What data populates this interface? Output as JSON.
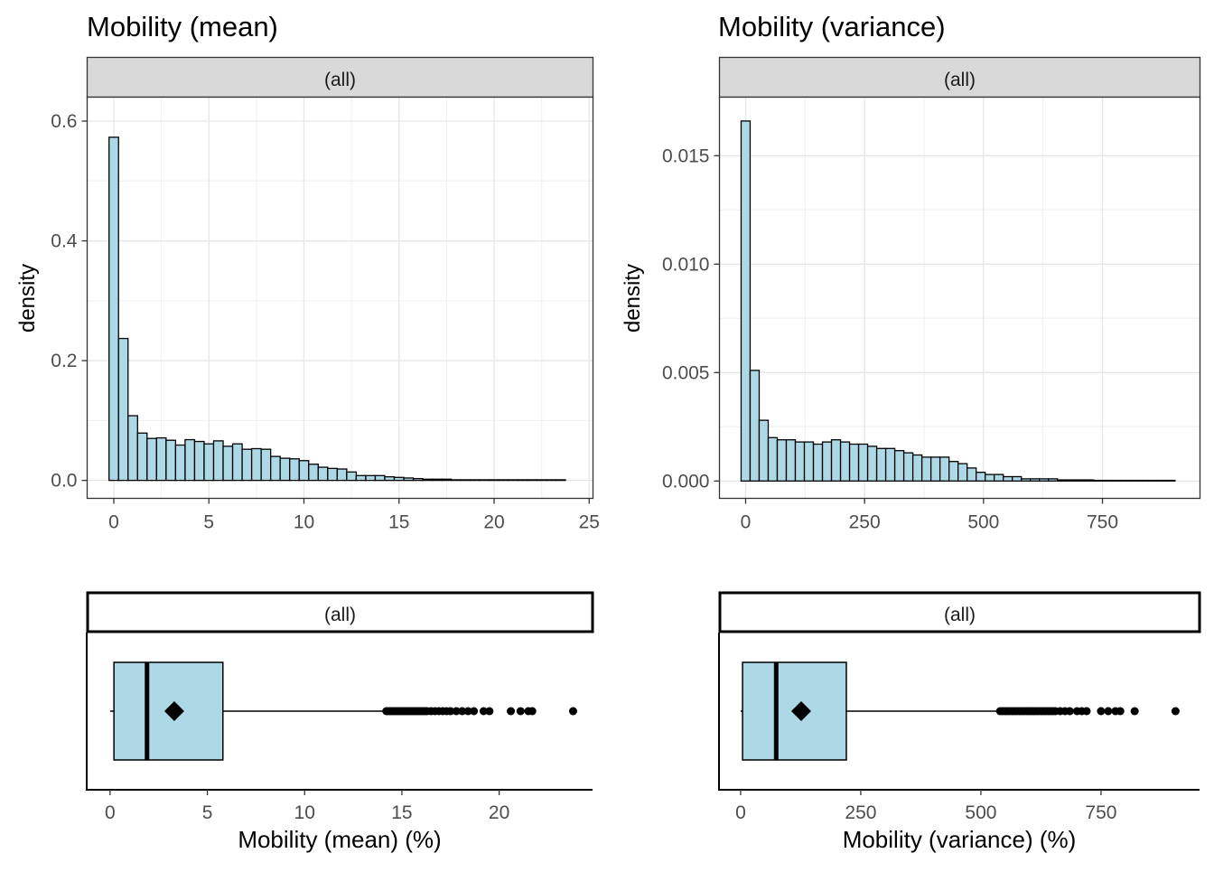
{
  "chart_data": [
    {
      "type": "histogram",
      "title": "Mobility (mean)",
      "facet_label": "(all)",
      "xlabel": "",
      "ylabel": "density",
      "xlim": [
        -1.4,
        25.2
      ],
      "ylim": [
        -0.03,
        0.64
      ],
      "x_ticks": [
        0,
        5,
        10,
        15,
        20,
        25
      ],
      "x_tick_labels": [
        "0",
        "5",
        "10",
        "15",
        "20",
        "25"
      ],
      "y_ticks": [
        0.0,
        0.2,
        0.4,
        0.6
      ],
      "y_tick_labels": [
        "0.0",
        "0.2",
        "0.4",
        "0.6"
      ],
      "grid": true,
      "bar_fill": "#add8e6",
      "bar_stroke": "#000000",
      "bin_start": -0.25,
      "bin_width": 0.5,
      "values": [
        0.573,
        0.237,
        0.108,
        0.079,
        0.07,
        0.071,
        0.067,
        0.059,
        0.068,
        0.065,
        0.061,
        0.066,
        0.057,
        0.061,
        0.052,
        0.053,
        0.052,
        0.04,
        0.037,
        0.036,
        0.033,
        0.027,
        0.022,
        0.02,
        0.019,
        0.014,
        0.008,
        0.008,
        0.008,
        0.006,
        0.005,
        0.004,
        0.003,
        0.002,
        0.002,
        0.002,
        0.001,
        0.001,
        0.001,
        0.001,
        0.001,
        0.001,
        0.001,
        0.001,
        0.001,
        0.001,
        0.001,
        0.001
      ]
    },
    {
      "type": "histogram",
      "title": "Mobility (variance)",
      "facet_label": "(all)",
      "xlabel": "",
      "ylabel": "density",
      "xlim": [
        -55,
        955
      ],
      "ylim": [
        -0.0008,
        0.0177
      ],
      "x_ticks": [
        0,
        250,
        500,
        750
      ],
      "x_tick_labels": [
        "0",
        "250",
        "500",
        "750"
      ],
      "y_ticks": [
        0.0,
        0.005,
        0.01,
        0.015
      ],
      "y_tick_labels": [
        "0.000",
        "0.005",
        "0.010",
        "0.015"
      ],
      "grid": true,
      "bar_fill": "#add8e6",
      "bar_stroke": "#000000",
      "bin_start": -9.5,
      "bin_width": 19,
      "values": [
        0.0166,
        0.0051,
        0.0028,
        0.002,
        0.0019,
        0.0019,
        0.0018,
        0.0018,
        0.0017,
        0.0018,
        0.0019,
        0.0018,
        0.0017,
        0.0017,
        0.0016,
        0.0015,
        0.0015,
        0.0014,
        0.0013,
        0.0012,
        0.0011,
        0.0011,
        0.0011,
        0.0009,
        0.0008,
        0.0006,
        0.0004,
        0.0003,
        0.0003,
        0.0002,
        0.0002,
        0.0001,
        0.0001,
        0.0001,
        0.0001,
        5e-05,
        5e-05,
        5e-05,
        5e-05,
        3e-05,
        3e-05,
        3e-05,
        3e-05,
        3e-05,
        3e-05,
        3e-05,
        3e-05,
        3e-05
      ]
    },
    {
      "type": "boxplot",
      "facet_label": "(all)",
      "xlabel": "Mobility (mean) (%)",
      "xlim": [
        -1.2,
        24.8
      ],
      "x_ticks": [
        0,
        5,
        10,
        15,
        20
      ],
      "x_tick_labels": [
        "0",
        "5",
        "10",
        "15",
        "20"
      ],
      "grid": false,
      "box_fill": "#add8e6",
      "min": 0.0,
      "q1": 0.2,
      "median": 1.9,
      "q3": 5.8,
      "whisker_high": 14.1,
      "mean": 3.3,
      "outliers": [
        14.2,
        14.3,
        14.4,
        14.5,
        14.6,
        14.7,
        14.8,
        14.9,
        15.0,
        15.1,
        15.2,
        15.3,
        15.4,
        15.5,
        15.6,
        15.7,
        15.8,
        15.9,
        16.0,
        16.1,
        16.2,
        16.3,
        16.5,
        16.7,
        16.9,
        17.1,
        17.3,
        17.5,
        17.8,
        18.1,
        18.4,
        18.7,
        19.2,
        19.5,
        20.6,
        21.1,
        21.5,
        21.7,
        23.8
      ]
    },
    {
      "type": "boxplot",
      "facet_label": "(all)",
      "xlabel": "Mobility (variance) (%)",
      "xlim": [
        -45,
        955
      ],
      "x_ticks": [
        0,
        250,
        500,
        750
      ],
      "x_tick_labels": [
        "0",
        "250",
        "500",
        "750"
      ],
      "grid": false,
      "box_fill": "#add8e6",
      "min": 0,
      "q1": 4,
      "median": 74,
      "q3": 220,
      "whisker_high": 538,
      "mean": 126,
      "outliers": [
        540,
        545,
        550,
        555,
        560,
        565,
        570,
        575,
        580,
        585,
        590,
        595,
        600,
        605,
        610,
        615,
        620,
        625,
        630,
        635,
        640,
        645,
        650,
        655,
        665,
        675,
        685,
        700,
        710,
        720,
        750,
        765,
        780,
        790,
        820,
        905
      ]
    }
  ]
}
